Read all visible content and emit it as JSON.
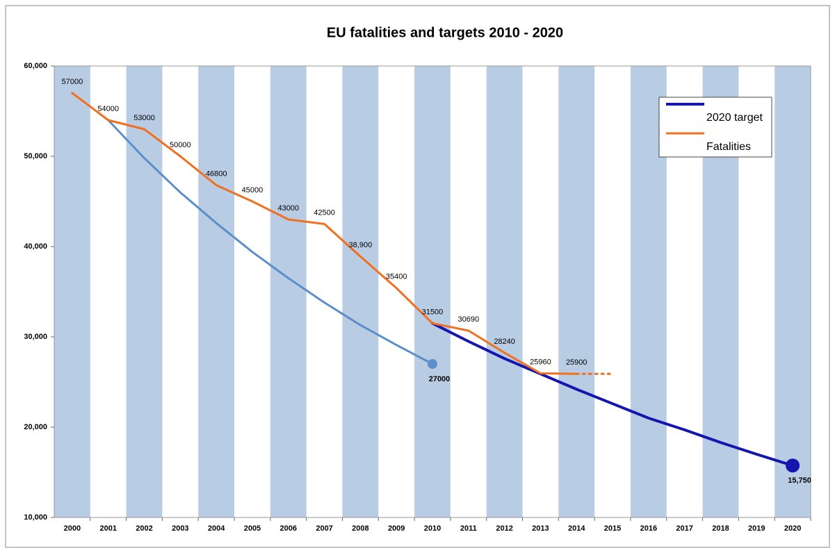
{
  "chart_data": {
    "type": "line",
    "title": "EU fatalities and targets 2010  - 2020",
    "categories": [
      "2000",
      "2001",
      "2002",
      "2003",
      "2004",
      "2005",
      "2006",
      "2007",
      "2008",
      "2009",
      "2010",
      "2011",
      "2012",
      "2013",
      "2014",
      "2015",
      "2016",
      "2017",
      "2018",
      "2019",
      "2020"
    ],
    "ylim": [
      10000,
      60000
    ],
    "yticks": [
      {
        "value": 10000,
        "label": "10,000"
      },
      {
        "value": 20000,
        "label": "20,000"
      },
      {
        "value": 30000,
        "label": "30,000"
      },
      {
        "value": 40000,
        "label": "40,000"
      },
      {
        "value": 50000,
        "label": "50,000"
      },
      {
        "value": 60000,
        "label": "60,000"
      }
    ],
    "band_color": "#b8cce4",
    "legend": "upper right",
    "series": [
      {
        "color": "#5b8fc9",
        "width": 3,
        "show_labels": "last",
        "end_marker": 7,
        "values": [
          null,
          54000,
          49800,
          46000,
          42600,
          39400,
          36500,
          33800,
          31300,
          29100,
          27000,
          null,
          null,
          null,
          null,
          null,
          null,
          null,
          null,
          null,
          null
        ]
      },
      {
        "name": "2020 target",
        "color": "#1515b0",
        "width": 4,
        "show_labels": "last",
        "end_marker": 10,
        "values": [
          null,
          null,
          null,
          null,
          null,
          null,
          null,
          null,
          null,
          null,
          31500,
          29500,
          27600,
          25900,
          24200,
          22600,
          21000,
          19700,
          18300,
          17000,
          15750
        ],
        "value_labels": [
          null,
          null,
          null,
          null,
          null,
          null,
          null,
          null,
          null,
          null,
          null,
          null,
          null,
          null,
          null,
          null,
          null,
          null,
          null,
          null,
          "15,750"
        ]
      },
      {
        "name": "Fatalities",
        "color": "#f07020",
        "width": 3,
        "show_labels": "all",
        "values": [
          57000,
          54000,
          53000,
          50000,
          46800,
          45000,
          43000,
          42500,
          38900,
          35400,
          31500,
          30690,
          28240,
          25960,
          25900,
          null,
          null,
          null,
          null,
          null,
          null
        ],
        "value_labels": [
          null,
          null,
          null,
          null,
          null,
          null,
          null,
          null,
          "38,900",
          null,
          null,
          null,
          null,
          null,
          null,
          null,
          null,
          null,
          null,
          null,
          null
        ]
      },
      {
        "color": "#f07020",
        "width": 3,
        "dashed": true,
        "show_labels": "none",
        "values": [
          null,
          null,
          null,
          null,
          null,
          null,
          null,
          null,
          null,
          null,
          null,
          null,
          null,
          null,
          25900,
          25900,
          null,
          null,
          null,
          null,
          null
        ]
      }
    ]
  }
}
